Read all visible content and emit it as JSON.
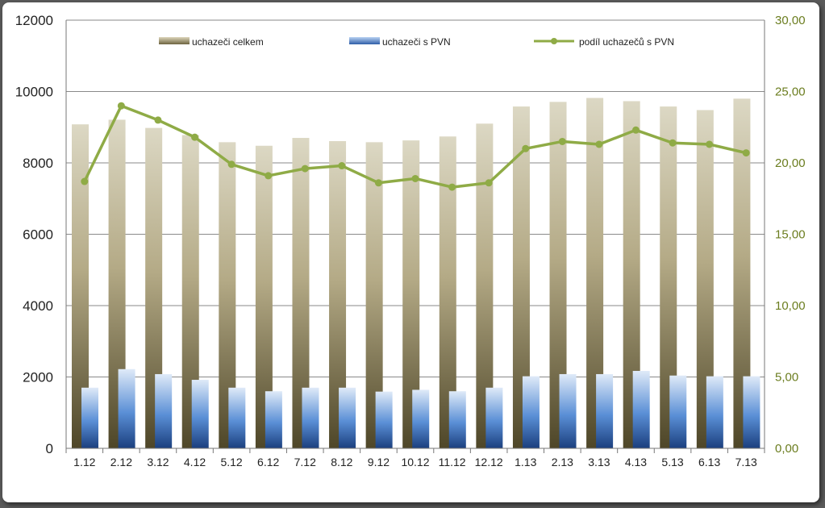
{
  "chart_data": {
    "type": "bar",
    "categories": [
      "1.12",
      "2.12",
      "3.12",
      "4.12",
      "5.12",
      "6.12",
      "7.12",
      "8.12",
      "9.12",
      "10.12",
      "11.12",
      "12.12",
      "1.13",
      "2.13",
      "3.13",
      "4.13",
      "5.13",
      "6.13",
      "7.13"
    ],
    "series": [
      {
        "name": "uchazeči celkem",
        "type": "bar",
        "axis": "left",
        "values": [
          9080,
          9210,
          8980,
          8780,
          8580,
          8480,
          8700,
          8610,
          8580,
          8630,
          8740,
          9100,
          9580,
          9710,
          9820,
          9730,
          9580,
          9480,
          9800
        ],
        "color": "#cbc6a8"
      },
      {
        "name": "uchazeči s PVN",
        "type": "bar",
        "axis": "left",
        "values": [
          1700,
          2220,
          2080,
          1920,
          1700,
          1600,
          1700,
          1700,
          1590,
          1640,
          1600,
          1700,
          2020,
          2080,
          2080,
          2170,
          2040,
          2020,
          2020
        ],
        "color": "#5a8fd0"
      },
      {
        "name": "podíl uchazečů s PVN",
        "type": "line",
        "axis": "right",
        "values": [
          18.7,
          24.0,
          23.0,
          21.8,
          19.9,
          19.1,
          19.6,
          19.8,
          18.6,
          18.9,
          18.3,
          18.6,
          21.0,
          21.5,
          21.3,
          22.3,
          21.4,
          21.3,
          20.7
        ],
        "color": "#8fab46"
      }
    ],
    "y_left": {
      "min": 0,
      "max": 12000,
      "ticks": [
        "0",
        "2000",
        "4000",
        "6000",
        "8000",
        "10000",
        "12000"
      ]
    },
    "y_right": {
      "min": 0,
      "max": 30,
      "ticks": [
        "0,00",
        "5,00",
        "10,00",
        "15,00",
        "20,00",
        "25,00",
        "30,00"
      ]
    },
    "grid": true,
    "legend_position": "top"
  }
}
